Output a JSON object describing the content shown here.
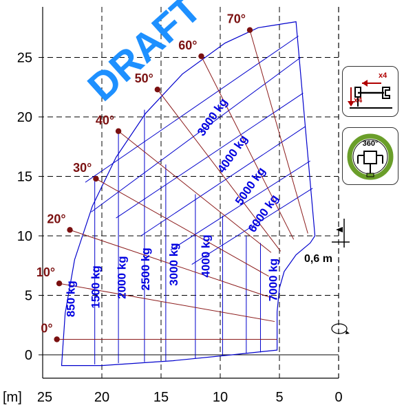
{
  "chart_data": {
    "type": "load_chart",
    "xlabel": "[m]",
    "x_ticks": [
      25,
      20,
      15,
      10,
      5,
      0
    ],
    "y_ticks": [
      0,
      5,
      10,
      15,
      20,
      25
    ],
    "xlim": [
      0,
      25
    ],
    "ylim": [
      0,
      27
    ],
    "grid": true,
    "max_reach_m": 23.4,
    "max_height_m": 27.8,
    "load_zones": [
      {
        "label": "850 kg",
        "x": 22.3,
        "y": 4.7
      },
      {
        "label": "1500 kg",
        "x": 20.2,
        "y": 5.7
      },
      {
        "label": "2000 kg",
        "x": 18.0,
        "y": 6.5
      },
      {
        "label": "2500 kg",
        "x": 16.0,
        "y": 7.2
      },
      {
        "label": "3000 kg",
        "x": 13.6,
        "y": 7.6
      },
      {
        "label": "4000 kg",
        "x": 10.9,
        "y": 8.3
      },
      {
        "label": "3000 kg",
        "x": 10.4,
        "y": 19.8
      },
      {
        "label": "4000 kg",
        "x": 8.7,
        "y": 16.7
      },
      {
        "label": "5000 kg",
        "x": 7.2,
        "y": 14.0
      },
      {
        "label": "6000 kg",
        "x": 6.1,
        "y": 11.7
      },
      {
        "label": "7000 kg",
        "x": 5.2,
        "y": 6.3
      }
    ],
    "boom_angles": [
      {
        "label": "0°",
        "x": 23.8,
        "y": 1.3
      },
      {
        "label": "10°",
        "x": 23.6,
        "y": 6.0
      },
      {
        "label": "20°",
        "x": 22.7,
        "y": 10.5
      },
      {
        "label": "30°",
        "x": 20.5,
        "y": 14.8
      },
      {
        "label": "40°",
        "x": 18.6,
        "y": 18.8
      },
      {
        "label": "50°",
        "x": 15.3,
        "y": 22.3
      },
      {
        "label": "60°",
        "x": 11.6,
        "y": 25.1
      },
      {
        "label": "70°",
        "x": 7.5,
        "y": 27.3
      }
    ],
    "annotations": [
      {
        "text": "0,6 m"
      },
      {
        "text": "DRAFT"
      }
    ]
  },
  "icons": {
    "outrigger": {
      "count_top": "x4",
      "count_side": "x4"
    },
    "rotation": {
      "angle": "360°"
    }
  },
  "colors": {
    "load_lines": "#0000cc",
    "angle_lines": "#8b1a1a",
    "draft": "#1e90ff"
  }
}
